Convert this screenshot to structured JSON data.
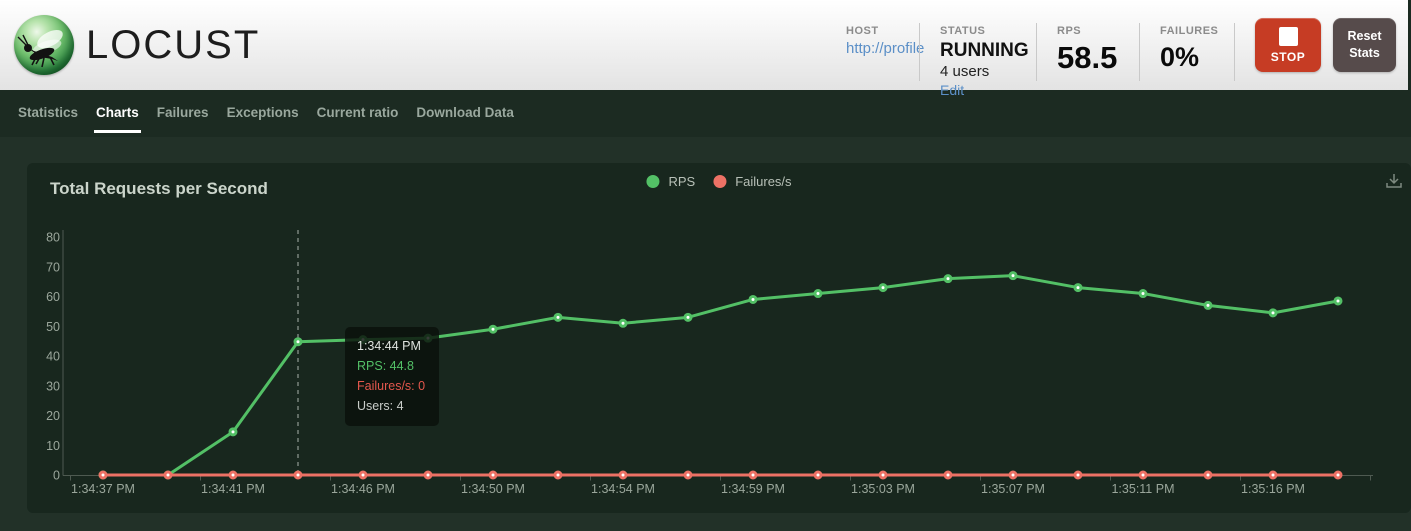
{
  "header": {
    "logo_text": "LOCUST",
    "host": {
      "label": "HOST",
      "value": "http://profile"
    },
    "status": {
      "label": "STATUS",
      "value": "RUNNING",
      "users": "4 users",
      "edit_label": "Edit"
    },
    "rps": {
      "label": "RPS",
      "value": "58.5"
    },
    "failures": {
      "label": "FAILURES",
      "value": "0%"
    },
    "stop_label": "STOP",
    "reset_label": "Reset Stats"
  },
  "nav": {
    "tabs": [
      {
        "label": "Statistics",
        "active": false
      },
      {
        "label": "Charts",
        "active": true
      },
      {
        "label": "Failures",
        "active": false
      },
      {
        "label": "Exceptions",
        "active": false
      },
      {
        "label": "Current ratio",
        "active": false
      },
      {
        "label": "Download Data",
        "active": false
      }
    ]
  },
  "chart_data": {
    "type": "line",
    "title": "Total Requests per Second",
    "legend": [
      "RPS",
      "Failures/s"
    ],
    "legend_position": "top-center",
    "grid": false,
    "ylim": [
      0,
      80
    ],
    "yticks": [
      0,
      10,
      20,
      30,
      40,
      50,
      60,
      70,
      80
    ],
    "x_tick_labels": [
      "1:34:37 PM",
      "1:34:41 PM",
      "1:34:46 PM",
      "1:34:50 PM",
      "1:34:54 PM",
      "1:34:59 PM",
      "1:35:03 PM",
      "1:35:07 PM",
      "1:35:11 PM",
      "1:35:16 PM"
    ],
    "x_ticks_every_n_points": 2,
    "hover_index": 3,
    "series": [
      {
        "name": "RPS",
        "color": "#53c066",
        "values": [
          0,
          0,
          14.5,
          44.8,
          45.5,
          46,
          49,
          53,
          51,
          53,
          59,
          61,
          63,
          66,
          67,
          63,
          61,
          57,
          54.5,
          58.5
        ]
      },
      {
        "name": "Failures/s",
        "color": "#ed7165",
        "values": [
          0,
          0,
          0,
          0,
          0,
          0,
          0,
          0,
          0,
          0,
          0,
          0,
          0,
          0,
          0,
          0,
          0,
          0,
          0,
          0
        ]
      }
    ]
  },
  "tooltip": {
    "time": "1:34:44 PM",
    "rps": "RPS: 44.8",
    "failures": "Failures/s: 0",
    "users": "Users: 4"
  }
}
